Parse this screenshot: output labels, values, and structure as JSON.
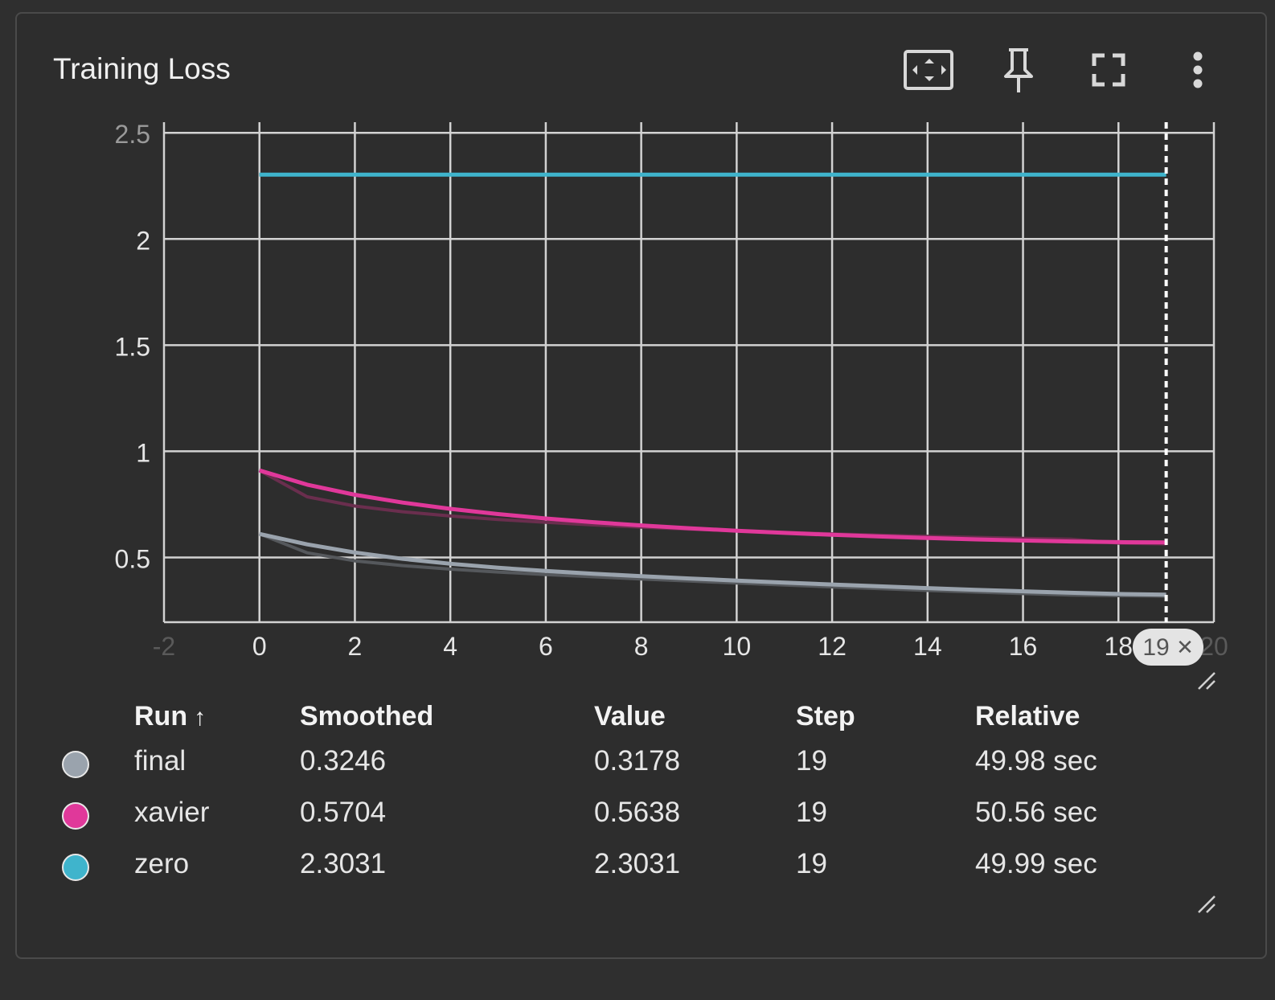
{
  "card": {
    "title": "Training Loss"
  },
  "toolbar": {
    "fit_icon": "fit-domain-icon",
    "pin_icon": "pin-icon",
    "fullscreen_icon": "fullscreen-icon",
    "menu_icon": "more-vert-icon"
  },
  "chart_data": {
    "type": "line",
    "xlabel": "",
    "ylabel": "",
    "xlim": [
      -2,
      20
    ],
    "ylim": [
      0.195,
      2.55
    ],
    "x_ticks": [
      -2,
      0,
      2,
      4,
      6,
      8,
      10,
      12,
      14,
      16,
      18,
      20
    ],
    "x_tick_labels": [
      "-2",
      "0",
      "2",
      "4",
      "6",
      "8",
      "10",
      "12",
      "14",
      "16",
      "18",
      "20"
    ],
    "y_ticks": [
      0.5,
      1,
      1.5,
      2,
      2.5
    ],
    "y_tick_labels": [
      "0.5",
      "1",
      "1.5",
      "2",
      "2.5"
    ],
    "grid": true,
    "cursor": {
      "step": 19,
      "label": "19",
      "close_glyph": "✕"
    },
    "series": [
      {
        "name": "final",
        "color": "#9aa3ad",
        "raw_color": "#55585c",
        "x": [
          0,
          1,
          2,
          3,
          4,
          5,
          6,
          7,
          8,
          9,
          10,
          11,
          12,
          13,
          14,
          15,
          16,
          17,
          18,
          19
        ],
        "smoothed": [
          0.6107,
          0.5616,
          0.5232,
          0.4935,
          0.4701,
          0.4515,
          0.4364,
          0.4233,
          0.4117,
          0.4011,
          0.3912,
          0.3817,
          0.3725,
          0.3638,
          0.3555,
          0.3477,
          0.3403,
          0.3334,
          0.3279,
          0.3246
        ],
        "raw": [
          0.6107,
          0.5217,
          0.4839,
          0.4617,
          0.4447,
          0.4312,
          0.4196,
          0.4088,
          0.3986,
          0.3889,
          0.3795,
          0.3702,
          0.3613,
          0.3527,
          0.3446,
          0.3369,
          0.3298,
          0.3231,
          0.3201,
          0.3178
        ]
      },
      {
        "name": "xavier",
        "color": "#e0389a",
        "raw_color": "#6a2e4e",
        "x": [
          0,
          1,
          2,
          3,
          4,
          5,
          6,
          7,
          8,
          9,
          10,
          11,
          12,
          13,
          14,
          15,
          16,
          17,
          18,
          19
        ],
        "smoothed": [
          0.9098,
          0.843,
          0.7952,
          0.7583,
          0.7287,
          0.7042,
          0.6836,
          0.6659,
          0.6507,
          0.6375,
          0.6259,
          0.6156,
          0.6066,
          0.5985,
          0.5913,
          0.585,
          0.5795,
          0.575,
          0.5722,
          0.5704
        ],
        "raw": [
          0.9098,
          0.7856,
          0.7422,
          0.7152,
          0.6952,
          0.6789,
          0.6651,
          0.6531,
          0.6427,
          0.6335,
          0.6253,
          0.6178,
          0.6111,
          0.6049,
          0.5994,
          0.5944,
          0.5899,
          0.5858,
          0.5677,
          0.5638
        ]
      },
      {
        "name": "zero",
        "color": "#3fb4cc",
        "raw_color": "#2f6f7c",
        "x": [
          0,
          1,
          2,
          3,
          4,
          5,
          6,
          7,
          8,
          9,
          10,
          11,
          12,
          13,
          14,
          15,
          16,
          17,
          18,
          19
        ],
        "smoothed": [
          2.3031,
          2.3031,
          2.3031,
          2.3031,
          2.3031,
          2.3031,
          2.3031,
          2.3031,
          2.3031,
          2.3031,
          2.3031,
          2.3031,
          2.3031,
          2.3031,
          2.3031,
          2.3031,
          2.3031,
          2.3031,
          2.3031,
          2.3031
        ],
        "raw": [
          2.3031,
          2.3031,
          2.3031,
          2.3031,
          2.3031,
          2.3031,
          2.3031,
          2.3031,
          2.3031,
          2.3031,
          2.3031,
          2.3031,
          2.3031,
          2.3031,
          2.3031,
          2.3031,
          2.3031,
          2.3031,
          2.3031,
          2.3031
        ]
      }
    ]
  },
  "table": {
    "headers": {
      "run": "Run",
      "sort_icon": "↑",
      "smoothed": "Smoothed",
      "value": "Value",
      "step": "Step",
      "relative": "Relative"
    },
    "rows": [
      {
        "color": "#9aa3ad",
        "run": "final",
        "smoothed": "0.3246",
        "value": "0.3178",
        "step": "19",
        "relative": "49.98 sec"
      },
      {
        "color": "#e0389a",
        "run": "xavier",
        "smoothed": "0.5704",
        "value": "0.5638",
        "step": "19",
        "relative": "50.56 sec"
      },
      {
        "color": "#3fb4cc",
        "run": "zero",
        "smoothed": "2.3031",
        "value": "2.3031",
        "step": "19",
        "relative": "49.99 sec"
      }
    ]
  }
}
